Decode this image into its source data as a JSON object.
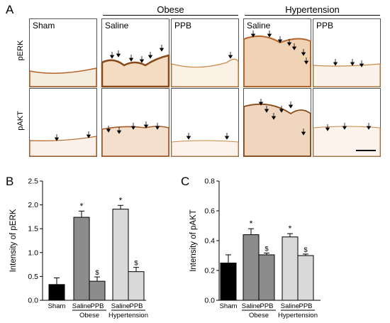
{
  "panels": {
    "a": "A",
    "b": "B",
    "c": "C"
  },
  "micrographs": {
    "groups": [
      "Obese",
      "Hypertension"
    ],
    "rows": [
      "pERK",
      "pAKT"
    ],
    "tiles": [
      {
        "label": "Sham"
      },
      {
        "label": "Saline"
      },
      {
        "label": "PPB"
      },
      {
        "label": "Saline"
      },
      {
        "label": "PPB"
      }
    ]
  },
  "colors": {
    "sham": "#000000",
    "obese": "#8c8c8c",
    "hypertension": "#d9d9d9",
    "stain": "#b5652a"
  },
  "chart_data": [
    {
      "type": "bar",
      "panel": "B",
      "categories": [
        "Sham",
        "Saline",
        "PPB",
        "Saline",
        "PPB"
      ],
      "group_labels": [
        "Obese",
        "Hypertension"
      ],
      "values": [
        0.33,
        1.74,
        0.4,
        1.91,
        0.6
      ],
      "errors": [
        0.14,
        0.13,
        0.09,
        0.08,
        0.09
      ],
      "annotations": [
        "",
        "*",
        "$",
        "*",
        "$"
      ],
      "ylabel": "Intensity of pERK",
      "xlabel": "",
      "title": "",
      "ylim": [
        0,
        2.5
      ],
      "yticks": [
        "0.0",
        "0.5",
        "1.0",
        "1.5",
        "2.0",
        "2.5"
      ],
      "ytick_values": [
        0,
        0.5,
        1.0,
        1.5,
        2.0,
        2.5
      ]
    },
    {
      "type": "bar",
      "panel": "C",
      "categories": [
        "Sham",
        "Saline",
        "PPB",
        "Saline",
        "PPB"
      ],
      "group_labels": [
        "Obese",
        "Hypertension"
      ],
      "values": [
        0.25,
        0.44,
        0.305,
        0.425,
        0.3
      ],
      "errors": [
        0.055,
        0.04,
        0.012,
        0.022,
        0.01
      ],
      "annotations": [
        "",
        "*",
        "$",
        "*",
        "$"
      ],
      "ylabel": "Intensity of pAKT",
      "xlabel": "",
      "title": "",
      "ylim": [
        0,
        0.8
      ],
      "yticks": [
        "0.0",
        "0.2",
        "0.4",
        "0.6",
        "0.8"
      ],
      "ytick_values": [
        0,
        0.2,
        0.4,
        0.6,
        0.8
      ]
    }
  ]
}
